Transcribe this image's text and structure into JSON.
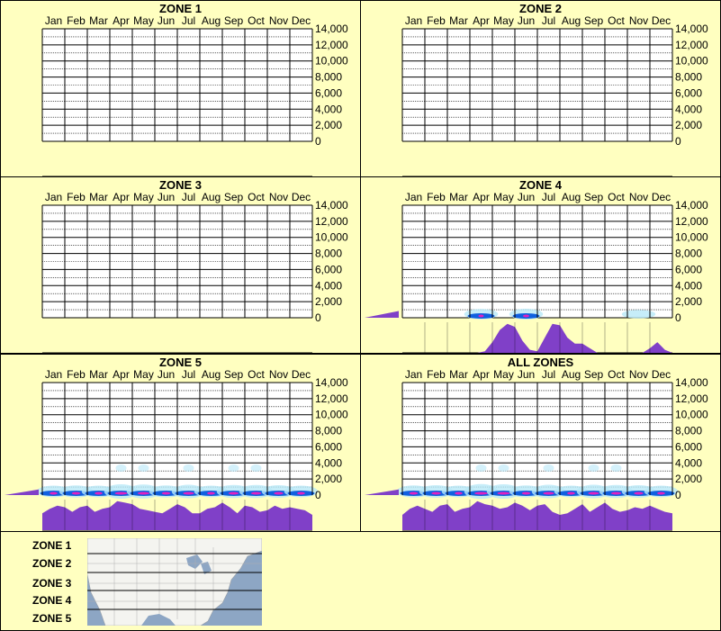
{
  "months": [
    "Jan",
    "Feb",
    "Mar",
    "Apr",
    "May",
    "Jun",
    "Jul",
    "Aug",
    "Sep",
    "Oct",
    "Nov",
    "Dec"
  ],
  "ytick_labels": [
    "14,000",
    "12,000",
    "10,000",
    "8,000",
    "6,000",
    "4,000",
    "2,000",
    "0"
  ],
  "colors": {
    "background": "#ffffc0",
    "purple": "#8040c8",
    "heat_low": "#b8e8f8",
    "heat_mid": "#1060e0",
    "heat_high": "#e020c0"
  },
  "legend": {
    "zones": [
      "ZONE 1",
      "ZONE 2",
      "ZONE 3",
      "ZONE 4",
      "ZONE 5"
    ]
  },
  "chart_data": [
    {
      "type": "heatmap",
      "title": "ZONE 1",
      "ylim": [
        0,
        14000
      ],
      "intensity": [
        0,
        0,
        0,
        0,
        0,
        0,
        0,
        0,
        0,
        0,
        0,
        0
      ],
      "side_hist": 0,
      "bottom": []
    },
    {
      "type": "heatmap",
      "title": "ZONE 2",
      "ylim": [
        0,
        14000
      ],
      "intensity": [
        0,
        0,
        0,
        0,
        0,
        0,
        0,
        0,
        0,
        0,
        0,
        0
      ],
      "side_hist": 0,
      "bottom": []
    },
    {
      "type": "heatmap",
      "title": "ZONE 3",
      "ylim": [
        0,
        14000
      ],
      "intensity": [
        0,
        0,
        0,
        0,
        0,
        0,
        0,
        0,
        0,
        0,
        0,
        0
      ],
      "side_hist": 0,
      "bottom": []
    },
    {
      "type": "heatmap",
      "title": "ZONE 4",
      "ylim": [
        0,
        14000
      ],
      "intensity": [
        0,
        0,
        0,
        0.35,
        0,
        0.4,
        0,
        0,
        0,
        0,
        0.15,
        0
      ],
      "side_hist": 0.3,
      "bottom": [
        0,
        0,
        0,
        0,
        0,
        0,
        0,
        0,
        0,
        0,
        0,
        0.05,
        0.35,
        0.75,
        0.95,
        0.85,
        0.4,
        0.1,
        0.05,
        0.5,
        0.95,
        0.9,
        0.5,
        0.3,
        0.3,
        0.15,
        0,
        0,
        0,
        0,
        0,
        0,
        0,
        0.15,
        0.35,
        0.1,
        0
      ]
    },
    {
      "type": "heatmap",
      "title": "ZONE 5",
      "ylim": [
        0,
        14000
      ],
      "intensity": [
        0.5,
        0.55,
        0.5,
        0.8,
        0.75,
        0.55,
        0.7,
        0.5,
        0.65,
        0.65,
        0.6,
        0.5
      ],
      "side_hist": 0.25,
      "bottom": [
        0.55,
        0.7,
        0.8,
        0.75,
        0.6,
        0.75,
        0.8,
        0.6,
        0.7,
        0.75,
        0.95,
        0.9,
        0.85,
        0.7,
        0.65,
        0.6,
        0.55,
        0.7,
        0.85,
        0.75,
        0.55,
        0.55,
        0.7,
        0.75,
        0.9,
        0.75,
        0.55,
        0.8,
        0.75,
        0.6,
        0.65,
        0.8,
        0.7,
        0.75,
        0.7,
        0.65,
        0.5
      ]
    },
    {
      "type": "heatmap",
      "title": "ALL ZONES",
      "ylim": [
        0,
        14000
      ],
      "intensity": [
        0.55,
        0.6,
        0.5,
        0.85,
        0.8,
        0.55,
        0.7,
        0.5,
        0.7,
        0.65,
        0.6,
        0.5
      ],
      "side_hist": 0.25,
      "bottom": [
        0.5,
        0.7,
        0.8,
        0.7,
        0.6,
        0.8,
        0.85,
        0.6,
        0.7,
        0.75,
        0.95,
        0.85,
        0.8,
        0.7,
        0.75,
        0.9,
        0.8,
        0.65,
        0.8,
        0.85,
        0.6,
        0.5,
        0.55,
        0.7,
        0.85,
        0.6,
        0.75,
        0.9,
        0.7,
        0.6,
        0.65,
        0.75,
        0.7,
        0.8,
        0.7,
        0.6,
        0.55
      ]
    }
  ]
}
